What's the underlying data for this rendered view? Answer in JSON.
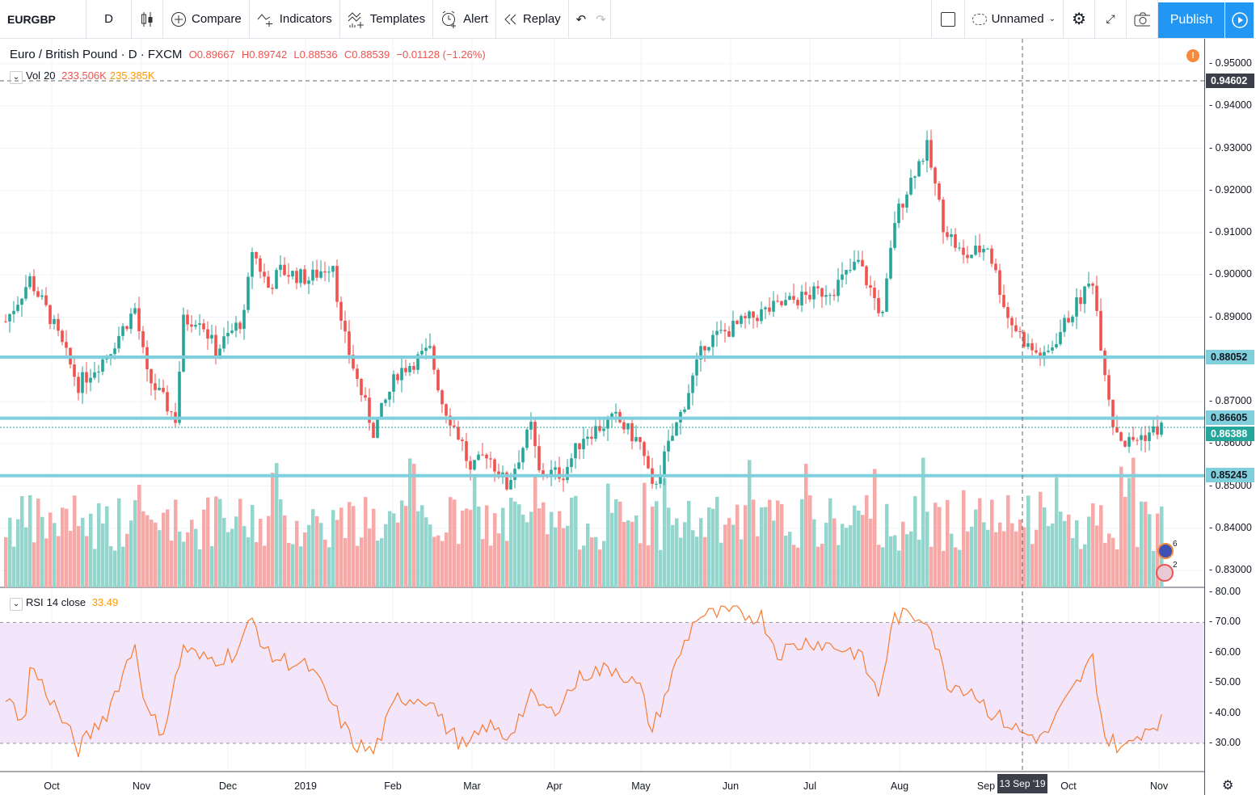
{
  "toolbar": {
    "symbol": "EURGBP",
    "interval": "D",
    "compare": "Compare",
    "indicators": "Indicators",
    "templates": "Templates",
    "alert": "Alert",
    "replay": "Replay",
    "layout_name": "Unnamed",
    "publish": "Publish"
  },
  "legend": {
    "title": "Euro / British Pound · D · FXCM",
    "open": "O0.89667",
    "high": "H0.89742",
    "low": "L0.88536",
    "close": "C0.88539",
    "change": "−0.01128 (−1.26%)"
  },
  "volume_legend": {
    "name": "Vol",
    "length": "20",
    "value": "233.506K",
    "ma": "235.385K"
  },
  "rsi_legend": {
    "name": "RSI",
    "params": "14 close",
    "value": "33.49"
  },
  "price_axis": [
    "0.95000",
    "0.94000",
    "0.93000",
    "0.92000",
    "0.91000",
    "0.90000",
    "0.89000",
    "0.87000",
    "0.86000",
    "0.85000",
    "0.84000",
    "0.83000"
  ],
  "rsi_axis": [
    "80.00",
    "70.00",
    "60.00",
    "50.00",
    "40.00",
    "30.00"
  ],
  "price_tags": {
    "crosshair": "0.94602",
    "level1": "0.88052",
    "level2": "0.86605",
    "last": "0.86388",
    "level3": "0.85245"
  },
  "time_axis": [
    "Oct",
    "Nov",
    "Dec",
    "2019",
    "Feb",
    "Mar",
    "Apr",
    "May",
    "Jun",
    "Jul",
    "Aug",
    "Sep",
    "Oct",
    "Nov"
  ],
  "crosshair_time": "13 Sep '19",
  "event_badges": [
    "6",
    "2"
  ],
  "colors": {
    "up": "#26a69a",
    "down": "#ef5350",
    "level": "#7fcfdc",
    "rsi": "#f57c32",
    "rsi_band": "#f3e6fb",
    "accent": "#2196f3"
  },
  "chart_data": {
    "type": "candlestick",
    "symbol": "EURGBP",
    "timeframe": "D",
    "price_range": [
      0.826,
      0.956
    ],
    "horizontal_levels": [
      0.88052,
      0.86605,
      0.85245
    ],
    "last_price": 0.86388,
    "close_waypoints_by_bar": [
      [
        0,
        0.889
      ],
      [
        6,
        0.899
      ],
      [
        11,
        0.89
      ],
      [
        18,
        0.874
      ],
      [
        25,
        0.881
      ],
      [
        32,
        0.892
      ],
      [
        35,
        0.876
      ],
      [
        42,
        0.866
      ],
      [
        44,
        0.889
      ],
      [
        48,
        0.89
      ],
      [
        52,
        0.882
      ],
      [
        59,
        0.89
      ],
      [
        61,
        0.906
      ],
      [
        65,
        0.897
      ],
      [
        68,
        0.901
      ],
      [
        75,
        0.899
      ],
      [
        81,
        0.903
      ],
      [
        83,
        0.888
      ],
      [
        87,
        0.875
      ],
      [
        91,
        0.863
      ],
      [
        97,
        0.877
      ],
      [
        105,
        0.882
      ],
      [
        108,
        0.87
      ],
      [
        113,
        0.86
      ],
      [
        115,
        0.853
      ],
      [
        119,
        0.858
      ],
      [
        124,
        0.85
      ],
      [
        130,
        0.864
      ],
      [
        132,
        0.853
      ],
      [
        138,
        0.853
      ],
      [
        143,
        0.862
      ],
      [
        151,
        0.866
      ],
      [
        157,
        0.86
      ],
      [
        160,
        0.849
      ],
      [
        167,
        0.867
      ],
      [
        173,
        0.884
      ],
      [
        179,
        0.887
      ],
      [
        187,
        0.891
      ],
      [
        195,
        0.894
      ],
      [
        205,
        0.897
      ],
      [
        211,
        0.903
      ],
      [
        217,
        0.89
      ],
      [
        220,
        0.913
      ],
      [
        225,
        0.925
      ],
      [
        228,
        0.93
      ],
      [
        232,
        0.912
      ],
      [
        237,
        0.904
      ],
      [
        243,
        0.907
      ],
      [
        248,
        0.89
      ],
      [
        253,
        0.883
      ],
      [
        257,
        0.88
      ],
      [
        263,
        0.89
      ],
      [
        269,
        0.899
      ],
      [
        271,
        0.884
      ],
      [
        274,
        0.865
      ],
      [
        277,
        0.86
      ],
      [
        286,
        0.8639
      ]
    ],
    "rsi_waypoints_by_bar": [
      [
        0,
        44
      ],
      [
        5,
        38
      ],
      [
        6,
        56
      ],
      [
        11,
        45
      ],
      [
        18,
        28
      ],
      [
        25,
        40
      ],
      [
        32,
        63
      ],
      [
        35,
        40
      ],
      [
        39,
        34
      ],
      [
        44,
        62
      ],
      [
        48,
        58
      ],
      [
        52,
        58
      ],
      [
        57,
        60
      ],
      [
        61,
        71
      ],
      [
        65,
        59
      ],
      [
        75,
        55
      ],
      [
        79,
        47
      ],
      [
        86,
        30
      ],
      [
        91,
        27
      ],
      [
        97,
        45
      ],
      [
        105,
        45
      ],
      [
        108,
        37
      ],
      [
        114,
        28
      ],
      [
        119,
        36
      ],
      [
        124,
        32
      ],
      [
        130,
        45
      ],
      [
        135,
        40
      ],
      [
        143,
        53
      ],
      [
        151,
        55
      ],
      [
        157,
        48
      ],
      [
        160,
        34
      ],
      [
        167,
        60
      ],
      [
        171,
        72
      ],
      [
        179,
        73
      ],
      [
        187,
        72
      ],
      [
        191,
        60
      ],
      [
        199,
        64
      ],
      [
        211,
        60
      ],
      [
        216,
        46
      ],
      [
        220,
        72
      ],
      [
        228,
        72
      ],
      [
        233,
        50
      ],
      [
        239,
        48
      ],
      [
        244,
        40
      ],
      [
        252,
        33
      ],
      [
        257,
        32
      ],
      [
        263,
        45
      ],
      [
        269,
        58
      ],
      [
        272,
        32
      ],
      [
        277,
        28
      ],
      [
        281,
        34
      ],
      [
        286,
        38
      ]
    ],
    "rsi_levels": [
      70,
      30
    ],
    "rsi_range": [
      25,
      80
    ]
  }
}
